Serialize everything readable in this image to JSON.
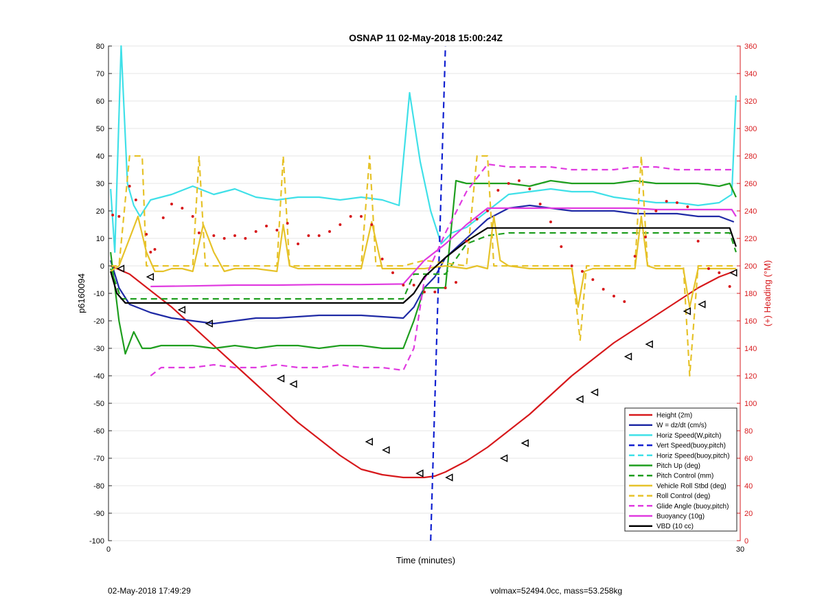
{
  "chart_data": {
    "type": "line",
    "title": "OSNAP 11 02-May-2018 15:00:24Z",
    "xlabel": "Time (minutes)",
    "ylabel": "p6160094",
    "y2label": "(+) Heading (°M)",
    "xlim": [
      0,
      30
    ],
    "ylim": [
      -100,
      80
    ],
    "y2lim": [
      0,
      360
    ],
    "xticks": [
      "0",
      "30"
    ],
    "yticks": [
      "80",
      "70",
      "60",
      "50",
      "40",
      "30",
      "20",
      "10",
      "0",
      "-10",
      "-20",
      "-30",
      "-40",
      "-50",
      "-60",
      "-70",
      "-80",
      "-90",
      "-100"
    ],
    "y2ticks": [
      "360",
      "340",
      "320",
      "300",
      "280",
      "260",
      "240",
      "220",
      "200",
      "180",
      "160",
      "140",
      "120",
      "100",
      "80",
      "60",
      "40",
      "20",
      "0"
    ],
    "grid": true,
    "legend_position": "bottom-right",
    "legend": [
      "Height (2m)",
      "W = dz/dt (cm/s)",
      "Horiz Speed(W,pitch)",
      "Vert Speed(buoy,pitch)",
      "Horiz Speed(buoy,pitch)",
      "Pitch Up (deg)",
      "Pitch Control (mm)",
      "Vehicle Roll Stbd (deg)",
      "Roll Control (deg)",
      "Glide Angle (buoy,pitch)",
      "Buoyancy (10g)",
      "VBD (10 cc)"
    ],
    "series": [
      {
        "name": "Height (2m)",
        "color": "#d7191c",
        "style": "solid",
        "x": [
          0.1,
          1,
          2,
          3,
          4,
          5,
          6,
          7,
          8,
          9,
          10,
          11,
          12,
          13,
          14,
          14.5,
          15,
          15.5,
          16,
          17,
          18,
          19,
          20,
          21,
          22,
          23,
          24,
          25,
          26,
          27,
          28,
          29,
          29.7
        ],
        "y": [
          0,
          -3,
          -9,
          -15,
          -22,
          -29,
          -36,
          -43,
          -50,
          -57,
          -63,
          -69,
          -74,
          -76,
          -77,
          -77,
          -77,
          -76.5,
          -75,
          -71,
          -66,
          -60,
          -54,
          -47,
          -40,
          -34,
          -28,
          -23,
          -18,
          -13,
          -8,
          -4,
          -2
        ]
      },
      {
        "name": "W = dz/dt (cm/s)",
        "color": "#1f2aa5",
        "style": "solid",
        "x": [
          0.1,
          0.5,
          1,
          2,
          3,
          4,
          5,
          6,
          7,
          8,
          9,
          10,
          11,
          12,
          13,
          14,
          14.5,
          15,
          15.5,
          16,
          17,
          18,
          19,
          20,
          21,
          22,
          23,
          24,
          25,
          26,
          27,
          28,
          29,
          29.7
        ],
        "y": [
          2,
          -8,
          -14,
          -17,
          -19,
          -20,
          -21,
          -20,
          -19,
          -19,
          -18.5,
          -18,
          -18,
          -18,
          -18.5,
          -19,
          -15,
          -8,
          -4,
          3,
          10,
          17,
          21,
          22,
          21,
          20,
          20,
          20,
          19,
          19,
          19,
          18,
          18,
          16
        ]
      },
      {
        "name": "Horiz Speed(W,pitch)",
        "color": "#3fe0e8",
        "style": "solid",
        "x": [
          0.1,
          0.3,
          0.6,
          0.9,
          1.2,
          1.5,
          2,
          3,
          4,
          5,
          6,
          7,
          8,
          9,
          10,
          11,
          12,
          13,
          13.8,
          14.3,
          14.8,
          15.3,
          15.8,
          16.3,
          17,
          18,
          19,
          20,
          21,
          22,
          23,
          24,
          25,
          26,
          27,
          28,
          29,
          29.6,
          29.8
        ],
        "y": [
          28,
          5,
          80,
          30,
          22,
          18,
          24,
          26,
          29,
          26,
          28,
          25,
          24,
          25,
          25,
          24,
          25,
          24,
          22,
          63,
          38,
          20,
          8,
          12,
          14,
          20,
          26,
          27,
          28,
          27,
          27,
          25,
          24,
          23,
          23,
          22,
          23,
          26,
          62
        ]
      },
      {
        "name": "Vert Speed(buoy,pitch)",
        "color": "#1020d0",
        "style": "dashed",
        "x": [
          15.3,
          16.0
        ],
        "y": [
          -100,
          80
        ]
      },
      {
        "name": "Horiz Speed(buoy,pitch)",
        "color": "#3fe0e8",
        "style": "dashed",
        "x": [],
        "y": []
      },
      {
        "name": "Pitch Up (deg)",
        "color": "#1e9e1e",
        "style": "solid",
        "x": [
          0.1,
          0.5,
          0.8,
          1.2,
          1.6,
          2,
          2.5,
          3,
          4,
          5,
          6,
          7,
          8,
          9,
          10,
          11,
          12,
          13,
          14,
          14.5,
          15,
          15.5,
          16,
          16.5,
          17,
          18,
          19,
          20,
          21,
          22,
          23,
          24,
          25,
          26,
          27,
          28,
          29,
          29.5,
          29.8
        ],
        "y": [
          5,
          -20,
          -32,
          -24,
          -30,
          -30,
          -29,
          -29,
          -29,
          -30,
          -29,
          -30,
          -29,
          -29,
          -30,
          -29,
          -29,
          -30,
          -30,
          -20,
          -8,
          -8,
          -8,
          31,
          30,
          30,
          30,
          29,
          31,
          30,
          30,
          30,
          31,
          30,
          30,
          30,
          29,
          30,
          25
        ]
      },
      {
        "name": "Pitch Control (mm)",
        "color": "#1e9e1e",
        "style": "dashed",
        "x": [
          0.1,
          0.6,
          1,
          14,
          14.5,
          15,
          16,
          17,
          18,
          19,
          29.5,
          29.8
        ],
        "y": [
          -1,
          -12,
          -12,
          -12,
          -3,
          -3,
          -3,
          8,
          11,
          12,
          12,
          5
        ]
      },
      {
        "name": "Vehicle Roll Stbd (deg)",
        "color": "#e6c229",
        "style": "solid",
        "x": [
          0.1,
          0.5,
          1,
          1.4,
          1.8,
          2.2,
          2.6,
          3,
          3.5,
          4,
          4.5,
          5,
          5.5,
          6,
          7,
          8,
          8.3,
          8.6,
          9,
          10,
          11,
          12,
          12.5,
          13,
          13.5,
          14,
          15,
          16,
          17,
          17.5,
          18,
          18.3,
          18.6,
          19,
          20,
          21,
          22,
          22.3,
          22.6,
          23,
          24,
          25,
          25.3,
          25.6,
          26,
          27,
          27.3,
          27.6,
          28,
          29,
          29.5,
          29.8
        ],
        "y": [
          -2,
          0,
          10,
          18,
          5,
          -2,
          -2,
          -1,
          -1,
          -2,
          15,
          5,
          -2,
          -1,
          -1,
          -2,
          15,
          0,
          -1,
          -1,
          -1,
          -1,
          16,
          -1,
          -1,
          -1,
          -1,
          0,
          -1,
          0,
          -1,
          18,
          2,
          0,
          -1,
          -1,
          -1,
          -15,
          -2,
          -1,
          -1,
          -1,
          18,
          0,
          -1,
          -1,
          -1,
          -15,
          -1,
          -1,
          -1,
          -1
        ]
      },
      {
        "name": "Roll Control (deg)",
        "color": "#e6c229",
        "style": "dashed",
        "x": [
          0.1,
          0.5,
          1,
          1.4,
          1.6,
          1.8,
          2.2,
          3,
          4,
          4.3,
          4.6,
          5,
          6,
          7,
          8,
          8.3,
          8.6,
          9,
          10,
          11,
          12,
          12.4,
          12.7,
          13,
          14,
          15,
          16,
          17,
          17.5,
          18,
          18.3,
          18.6,
          19,
          20,
          21,
          22,
          22.4,
          22.7,
          23,
          24,
          25,
          25.3,
          25.6,
          26,
          27,
          27.3,
          27.6,
          28,
          29,
          29.5,
          29.8
        ],
        "y": [
          0,
          0,
          40,
          40,
          40,
          0,
          0,
          0,
          0,
          40,
          0,
          0,
          0,
          0,
          0,
          40,
          0,
          0,
          0,
          0,
          0,
          40,
          0,
          0,
          0,
          2,
          1,
          0,
          40,
          40,
          0,
          0,
          0,
          0,
          0,
          0,
          -27,
          0,
          0,
          0,
          0,
          40,
          0,
          0,
          0,
          0,
          -40,
          0,
          0,
          0,
          0
        ]
      },
      {
        "name": "Glide Angle (buoy,pitch)",
        "color": "#e03ae0",
        "style": "dashed",
        "x": [
          2,
          2.5,
          3,
          4,
          5,
          6,
          7,
          8,
          9,
          10,
          11,
          12,
          13,
          14,
          14.5,
          15,
          16,
          17,
          18,
          19,
          20,
          21,
          22,
          23,
          24,
          25,
          26,
          27,
          28,
          29,
          29.7
        ],
        "y": [
          -40,
          -37,
          -37,
          -37,
          -36,
          -37,
          -37,
          -36,
          -37,
          -37,
          -36,
          -37,
          -37,
          -38,
          -30,
          -5,
          12,
          27,
          37,
          36,
          36,
          36,
          35,
          35,
          35,
          36,
          36,
          35,
          35,
          35,
          35
        ]
      },
      {
        "name": "Buoyancy (10g)",
        "color": "#e03ae0",
        "style": "solid",
        "x": [
          2,
          4,
          6,
          8,
          10,
          12,
          14,
          15,
          16,
          17,
          18,
          19,
          20,
          21,
          22,
          23,
          24,
          25,
          26,
          27,
          28,
          29,
          29.6,
          29.8
        ],
        "y": [
          -7.5,
          -7.3,
          -7,
          -7,
          -6.8,
          -6.8,
          -6.6,
          2,
          8,
          15,
          21,
          21,
          21,
          21,
          21,
          21,
          21,
          21,
          20.5,
          20.5,
          20.5,
          20.5,
          20.5,
          18
        ]
      },
      {
        "name": "VBD (10 cc)",
        "color": "#000000",
        "style": "solid",
        "x": [
          0.1,
          0.4,
          0.8,
          1,
          2,
          4,
          6,
          8,
          10,
          12,
          14,
          14.5,
          15,
          16,
          17,
          18,
          19,
          20,
          22,
          24,
          26,
          28,
          29.5,
          29.8
        ],
        "y": [
          -2,
          -10,
          -13.5,
          -13.5,
          -13.5,
          -13.5,
          -13.5,
          -13.5,
          -13.5,
          -13.5,
          -13.5,
          -10,
          -4,
          3,
          9,
          13.8,
          13.8,
          13.8,
          13.8,
          13.8,
          13.8,
          13.8,
          13.8,
          7
        ]
      }
    ],
    "heading_points": {
      "color": "#d7191c",
      "axis": "y2",
      "x": [
        0.2,
        0.5,
        1,
        1.3,
        1.8,
        2,
        2.2,
        2.6,
        3,
        3.5,
        4,
        4.3,
        5,
        5.5,
        6,
        6.5,
        7,
        7.5,
        8,
        8.5,
        9,
        9.5,
        10,
        10.5,
        11,
        11.5,
        12,
        12.5,
        13,
        13.5,
        14,
        14.5,
        15,
        15.5,
        16,
        16.5,
        17,
        17.5,
        18,
        18.5,
        19,
        19.5,
        20,
        20.5,
        21,
        21.5,
        22,
        22.5,
        23,
        23.5,
        24,
        24.5,
        25,
        25.5,
        26,
        26.5,
        27,
        27.5,
        28,
        28.5,
        29,
        29.5
      ],
      "y": [
        237,
        236,
        258,
        248,
        223,
        210,
        212,
        235,
        245,
        242,
        236,
        224,
        222,
        220,
        222,
        220,
        225,
        229,
        226,
        231,
        216,
        222,
        222,
        225,
        230,
        236,
        236,
        230,
        205,
        195,
        186,
        186,
        181,
        181,
        184,
        188,
        218,
        234,
        240,
        255,
        260,
        262,
        256,
        245,
        232,
        214,
        200,
        196,
        190,
        183,
        178,
        174,
        207,
        221,
        240,
        247,
        246,
        243,
        218,
        198,
        195,
        185
      ]
    },
    "height_markers": {
      "color": "#000000",
      "x": [
        0.6,
        2,
        3.5,
        4.8,
        8.2,
        8.8,
        12.4,
        13.2,
        14.8,
        16.2,
        18.8,
        19.8,
        22.4,
        23.1,
        24.7,
        25.7,
        27.5,
        28.2,
        29.7
      ],
      "y": [
        -1,
        -4,
        -16,
        -21,
        -41,
        -43,
        -64,
        -67,
        -75.5,
        -77,
        -70,
        -64.5,
        -48.5,
        -46,
        -33,
        -28.5,
        -16.5,
        -14,
        -2.5
      ]
    }
  },
  "footer": {
    "left": "02-May-2018 17:49:29",
    "right": "volmax=52494.0cc, mass=53.258kg"
  }
}
